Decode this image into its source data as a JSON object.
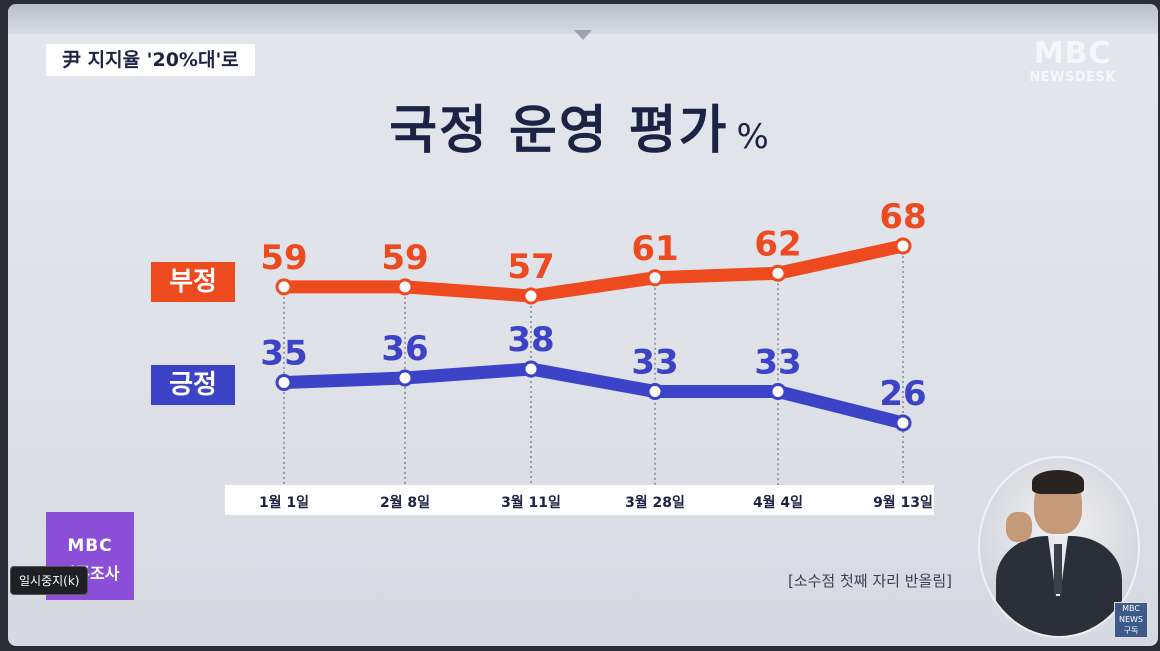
{
  "headline": "尹 지지율 '20%대'로",
  "logo": {
    "mark": "MBC",
    "sub": "NEWSDESK"
  },
  "title": {
    "text": "국정 운영 평가",
    "unit": "%"
  },
  "footnote": "[소수점 첫째 자리 반올림]",
  "poll_box": {
    "mark": "MBC",
    "text": "여론조사"
  },
  "pause_tooltip": "일시중지(k)",
  "sub_badge": {
    "mark": "MBC",
    "news": "NEWS",
    "label": "구독"
  },
  "colors": {
    "negative": "#ee4a1f",
    "positive": "#3d43c7",
    "text": "#1c2344"
  },
  "chart_data": {
    "type": "line",
    "title": "국정 운영 평가",
    "unit": "%",
    "categories": [
      "1월 1일",
      "2월 8일",
      "3월 11일",
      "3월 28일",
      "4월 4일",
      "9월 13일"
    ],
    "series": [
      {
        "name": "부정",
        "values": [
          59,
          59,
          57,
          61,
          62,
          68
        ],
        "color": "#ee4a1f"
      },
      {
        "name": "긍정",
        "values": [
          35,
          36,
          38,
          33,
          33,
          26
        ],
        "color": "#3d43c7"
      }
    ],
    "legend_placement": "left",
    "grid": false
  }
}
